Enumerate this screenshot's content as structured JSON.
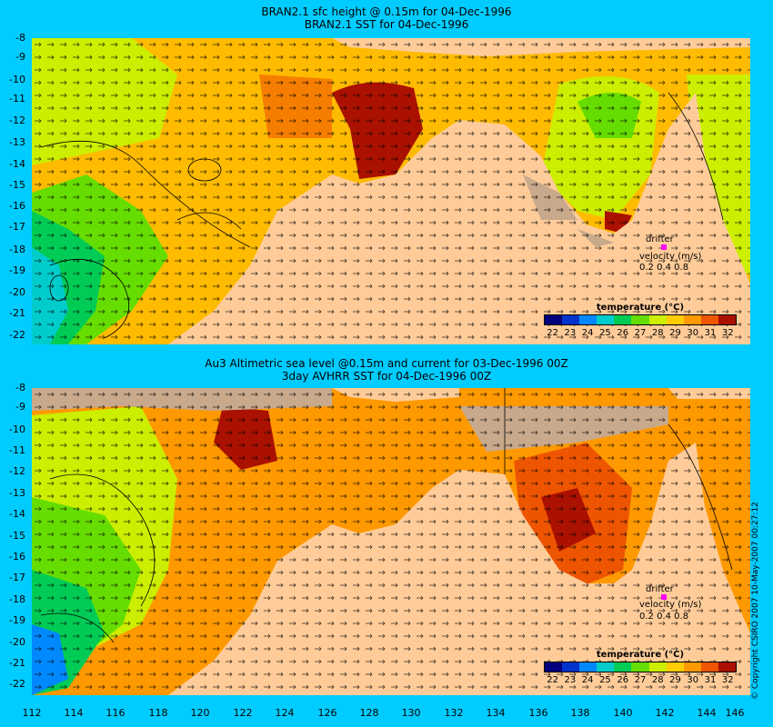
{
  "panels": [
    {
      "title_line1": "BRAN2.1 sfc height @ 0.15m for 04-Dec-1996",
      "title_line2": "BRAN2.1  SST for 04-Dec-1996"
    },
    {
      "title_line1": "Au3 Altimetric sea level  @0.15m and current for 03-Dec-1996 00Z",
      "title_line2": "3day AVHRR SST for 04-Dec-1996 00Z"
    }
  ],
  "y_axis_labels": [
    "-8",
    "-9",
    "-10",
    "-11",
    "-12",
    "-13",
    "-14",
    "-15",
    "-16",
    "-17",
    "-18",
    "-19",
    "-20",
    "-21",
    "-22"
  ],
  "x_axis_labels": [
    "112",
    "114",
    "116",
    "118",
    "120",
    "122",
    "124",
    "126",
    "128",
    "130",
    "132",
    "134",
    "136",
    "138",
    "140",
    "142",
    "144",
    "146"
  ],
  "legend": {
    "title": "temperature (°C)",
    "ticks": [
      "22",
      "23",
      "24",
      "25",
      "26",
      "27",
      "28",
      "29",
      "30",
      "31",
      "32"
    ],
    "colors": [
      "#00007f",
      "#0033cc",
      "#0088ff",
      "#00cccc",
      "#00cc55",
      "#66dd00",
      "#ccee00",
      "#ffcc00",
      "#ff9900",
      "#ee5500",
      "#aa1100"
    ]
  },
  "drifter_label": "drifter",
  "velocity_label": "velocity (m/s)",
  "velocity_values": "0.2 0.4 0.8",
  "copyright": "© Copyright CSIRO 2007    10-May-2007 00:27:12",
  "colors": {
    "land": "#ffcc99",
    "shelf": "#c8a98c",
    "background": "#00ccff",
    "drifter": "#ff00ff"
  }
}
